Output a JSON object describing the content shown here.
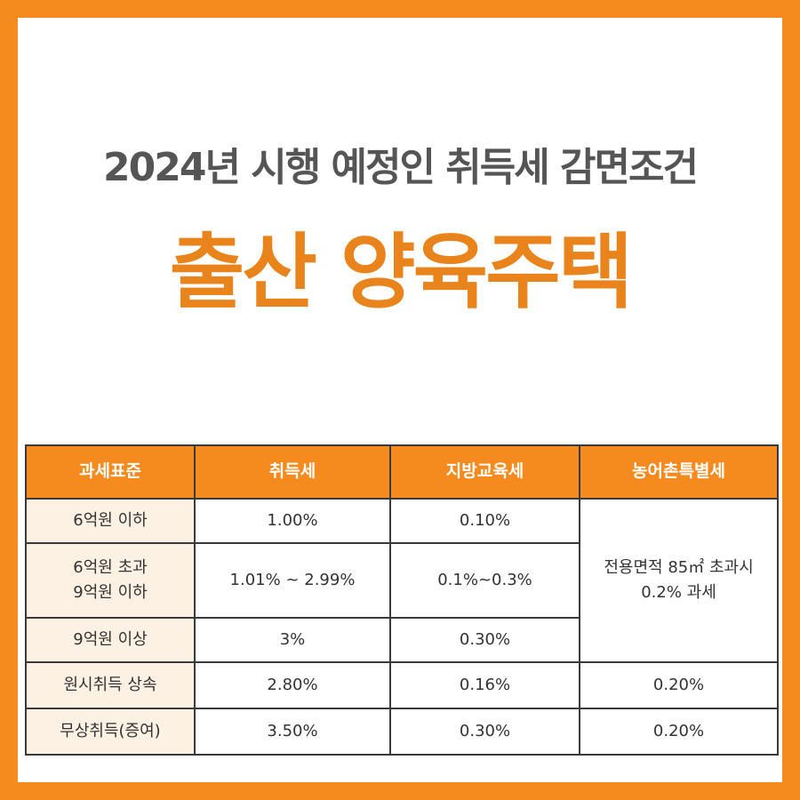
{
  "header": {
    "subtitle": "2024년 시행 예정인 취득세 감면조건",
    "title": "출산 양육주택"
  },
  "table": {
    "columns": [
      "과세표준",
      "취득세",
      "지방교육세",
      "농어촌특별세"
    ],
    "rows": [
      {
        "standard": "6억원 이하",
        "acquisition_tax": "1.00%",
        "education_tax": "0.10%"
      },
      {
        "standard_line1": "6억원 초과",
        "standard_line2": "9억원 이하",
        "acquisition_tax": "1.01% ~ 2.99%",
        "education_tax": "0.1%~0.3%"
      },
      {
        "standard": "9억원 이상",
        "acquisition_tax": "3%",
        "education_tax": "0.30%"
      },
      {
        "standard": "원시취득 상속",
        "acquisition_tax": "2.80%",
        "education_tax": "0.16%",
        "rural_tax": "0.20%"
      },
      {
        "standard": "무상취득(증여)",
        "acquisition_tax": "3.50%",
        "education_tax": "0.30%",
        "rural_tax": "0.20%"
      }
    ],
    "rural_tax_merged_line1": "전용면적 85㎡ 초과시",
    "rural_tax_merged_line2": "0.2% 과세"
  },
  "colors": {
    "accent": "#f58a1f",
    "title": "#e9831c",
    "subtitle": "#555555",
    "row_header_bg": "#fdf1e4"
  }
}
